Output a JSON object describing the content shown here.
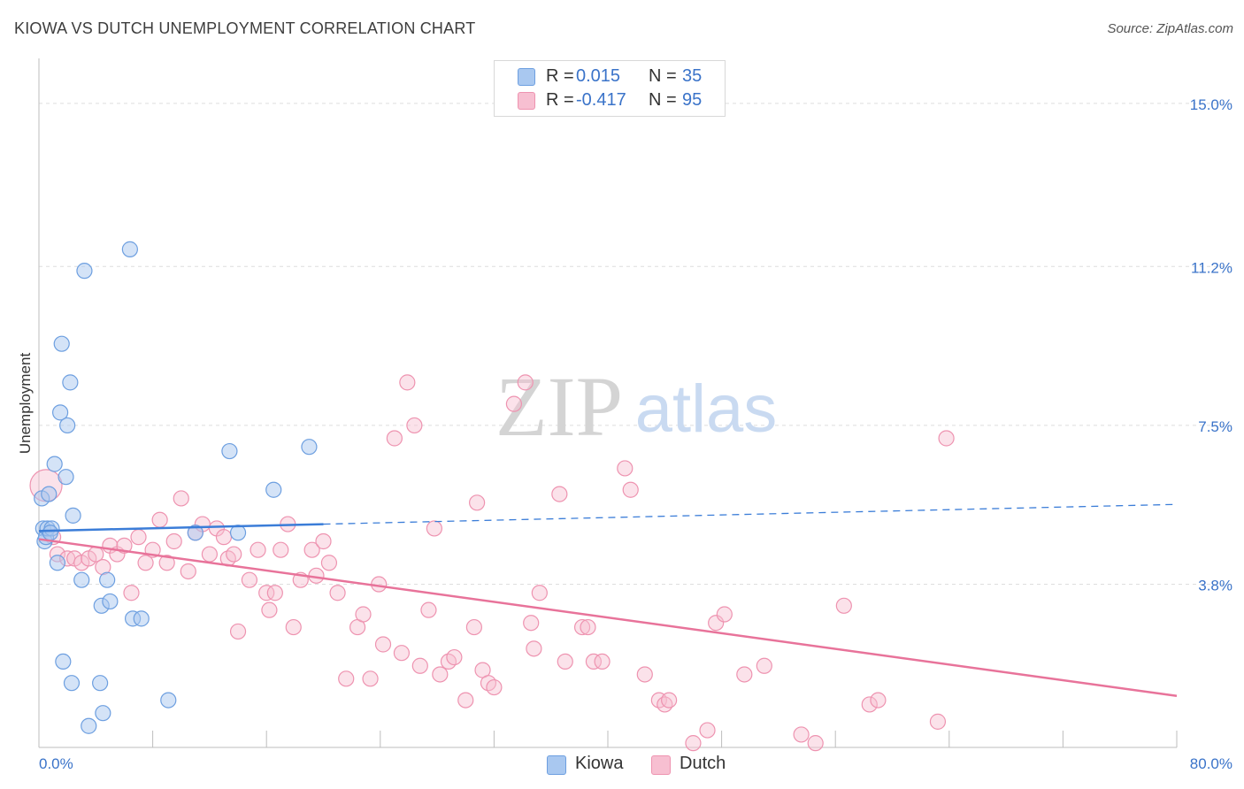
{
  "header": {
    "title": "KIOWA VS DUTCH UNEMPLOYMENT CORRELATION CHART",
    "source": "Source: ZipAtlas.com"
  },
  "watermark": {
    "zip": "ZIP",
    "atlas": "atlas"
  },
  "legend": {
    "kiowa": {
      "r_label": "R =",
      "r_value": "0.015",
      "n_label": "N =",
      "n_value": "35"
    },
    "dutch": {
      "r_label": "R =",
      "r_value": "-0.417",
      "n_label": "N =",
      "n_value": "95"
    }
  },
  "bottom_legend": {
    "kiowa": "Kiowa",
    "dutch": "Dutch"
  },
  "colors": {
    "kiowa_fill": "#a9c8f0",
    "kiowa_stroke": "#6d9fe0",
    "kiowa_line": "#3b7dd8",
    "dutch_fill": "#f7bfd1",
    "dutch_stroke": "#ee93b0",
    "dutch_line": "#e8739a",
    "tick_label": "#3a73c9",
    "grid": "#dedede"
  },
  "chart_data": {
    "type": "scatter",
    "title": "KIOWA VS DUTCH UNEMPLOYMENT CORRELATION CHART",
    "xlabel": "",
    "ylabel": "Unemployment",
    "xlim": [
      0,
      80
    ],
    "ylim": [
      0,
      15.8
    ],
    "x_tick_labels": [
      "0.0%",
      "80.0%"
    ],
    "y_ticks": [
      {
        "value": 3.8,
        "label": "3.8%"
      },
      {
        "value": 7.5,
        "label": "7.5%"
      },
      {
        "value": 11.2,
        "label": "11.2%"
      },
      {
        "value": 15.0,
        "label": "15.0%"
      }
    ],
    "grid": "horizontal dashed",
    "series": [
      {
        "name": "Kiowa",
        "r": 0.015,
        "n": 35,
        "trend": {
          "x0": 0,
          "y0": 5.04,
          "x1": 20,
          "y1": 5.2,
          "dashed_to_x": 80,
          "dashed_to_y": 5.66
        },
        "points": [
          [
            0.2,
            5.8
          ],
          [
            0.3,
            5.1
          ],
          [
            0.4,
            4.8
          ],
          [
            0.5,
            4.9
          ],
          [
            0.6,
            5.1
          ],
          [
            0.7,
            5.9
          ],
          [
            0.9,
            5.1
          ],
          [
            1.1,
            6.6
          ],
          [
            1.3,
            4.3
          ],
          [
            1.5,
            7.8
          ],
          [
            1.6,
            9.4
          ],
          [
            1.7,
            2.0
          ],
          [
            1.9,
            6.3
          ],
          [
            2.0,
            7.5
          ],
          [
            2.2,
            8.5
          ],
          [
            2.3,
            1.5
          ],
          [
            2.4,
            5.4
          ],
          [
            3.0,
            3.9
          ],
          [
            3.2,
            11.1
          ],
          [
            3.5,
            0.5
          ],
          [
            4.3,
            1.5
          ],
          [
            4.4,
            3.3
          ],
          [
            4.5,
            0.8
          ],
          [
            4.8,
            3.9
          ],
          [
            5.0,
            3.4
          ],
          [
            6.4,
            11.6
          ],
          [
            6.6,
            3.0
          ],
          [
            7.2,
            3.0
          ],
          [
            9.1,
            1.1
          ],
          [
            11.0,
            5.0
          ],
          [
            13.4,
            6.9
          ],
          [
            14.0,
            5.0
          ],
          [
            16.5,
            6.0
          ],
          [
            19.0,
            7.0
          ],
          [
            0.8,
            5.0
          ]
        ]
      },
      {
        "name": "Dutch",
        "r": -0.417,
        "n": 95,
        "trend": {
          "x0": 0,
          "y0": 4.85,
          "x1": 80,
          "y1": 1.2
        },
        "points": [
          [
            0.5,
            6.1
          ],
          [
            1.0,
            4.9
          ],
          [
            1.3,
            4.5
          ],
          [
            2.0,
            4.4
          ],
          [
            2.5,
            4.4
          ],
          [
            3.0,
            4.3
          ],
          [
            3.5,
            4.4
          ],
          [
            4.0,
            4.5
          ],
          [
            4.5,
            4.2
          ],
          [
            5.0,
            4.7
          ],
          [
            5.5,
            4.5
          ],
          [
            6.0,
            4.7
          ],
          [
            6.5,
            3.6
          ],
          [
            7.0,
            4.9
          ],
          [
            7.5,
            4.3
          ],
          [
            8.0,
            4.6
          ],
          [
            8.5,
            5.3
          ],
          [
            9.0,
            4.3
          ],
          [
            9.5,
            4.8
          ],
          [
            10.0,
            5.8
          ],
          [
            10.5,
            4.1
          ],
          [
            11.0,
            5.0
          ],
          [
            11.5,
            5.2
          ],
          [
            12.0,
            4.5
          ],
          [
            12.5,
            5.1
          ],
          [
            13.0,
            4.9
          ],
          [
            13.3,
            4.4
          ],
          [
            13.7,
            4.5
          ],
          [
            14.0,
            2.7
          ],
          [
            14.8,
            3.9
          ],
          [
            15.4,
            4.6
          ],
          [
            16.0,
            3.6
          ],
          [
            16.2,
            3.2
          ],
          [
            16.6,
            3.6
          ],
          [
            17.0,
            4.6
          ],
          [
            17.5,
            5.2
          ],
          [
            17.9,
            2.8
          ],
          [
            18.4,
            3.9
          ],
          [
            19.2,
            4.6
          ],
          [
            19.5,
            4.0
          ],
          [
            20.0,
            4.8
          ],
          [
            20.4,
            4.3
          ],
          [
            21.0,
            3.6
          ],
          [
            21.6,
            1.6
          ],
          [
            22.4,
            2.8
          ],
          [
            22.8,
            3.1
          ],
          [
            23.3,
            1.6
          ],
          [
            23.9,
            3.8
          ],
          [
            24.2,
            2.4
          ],
          [
            25.0,
            7.2
          ],
          [
            25.5,
            2.2
          ],
          [
            25.9,
            8.5
          ],
          [
            26.4,
            7.5
          ],
          [
            26.8,
            1.9
          ],
          [
            27.4,
            3.2
          ],
          [
            27.8,
            5.1
          ],
          [
            28.2,
            1.7
          ],
          [
            28.8,
            2.0
          ],
          [
            29.2,
            2.1
          ],
          [
            30.0,
            1.1
          ],
          [
            30.6,
            2.8
          ],
          [
            31.2,
            1.8
          ],
          [
            31.6,
            1.5
          ],
          [
            32.0,
            1.4
          ],
          [
            33.4,
            8.0
          ],
          [
            34.2,
            8.5
          ],
          [
            34.6,
            2.9
          ],
          [
            34.8,
            2.3
          ],
          [
            35.2,
            3.6
          ],
          [
            36.6,
            5.9
          ],
          [
            37.0,
            2.0
          ],
          [
            38.2,
            2.8
          ],
          [
            38.6,
            2.8
          ],
          [
            39.0,
            2.0
          ],
          [
            39.6,
            2.0
          ],
          [
            41.2,
            6.5
          ],
          [
            41.6,
            6.0
          ],
          [
            42.6,
            1.7
          ],
          [
            43.6,
            1.1
          ],
          [
            44.0,
            1.0
          ],
          [
            44.3,
            1.1
          ],
          [
            46.0,
            0.1
          ],
          [
            47.6,
            2.9
          ],
          [
            48.2,
            3.1
          ],
          [
            49.6,
            1.7
          ],
          [
            51.0,
            1.9
          ],
          [
            53.6,
            0.3
          ],
          [
            54.6,
            0.1
          ],
          [
            56.6,
            3.3
          ],
          [
            58.4,
            1.0
          ],
          [
            59.0,
            1.1
          ],
          [
            63.2,
            0.6
          ],
          [
            63.8,
            7.2
          ],
          [
            47.0,
            0.4
          ],
          [
            30.8,
            5.7
          ]
        ]
      }
    ]
  }
}
